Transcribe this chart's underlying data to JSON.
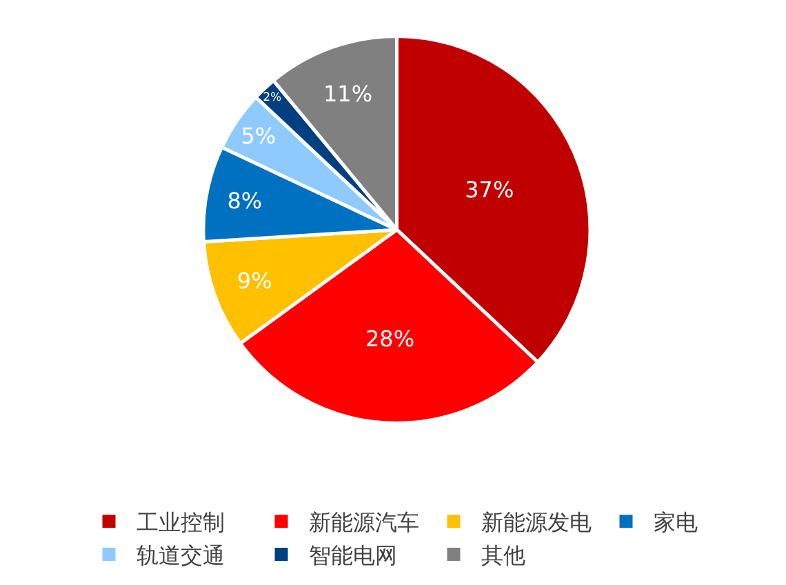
{
  "chart_data": {
    "type": "pie",
    "categories": [
      "工业控制",
      "新能源汽车",
      "新能源发电",
      "家电",
      "轨道交通",
      "智能电网",
      "其他"
    ],
    "values": [
      37,
      28,
      9,
      8,
      5,
      2,
      11
    ],
    "value_labels": [
      "37%",
      "28%",
      "9%",
      "8%",
      "5%",
      "2%",
      "11%"
    ],
    "colors": [
      "#c00000",
      "#ff0000",
      "#ffc000",
      "#0070c0",
      "#8fcaff",
      "#003f80",
      "#808080"
    ],
    "legend": "bottom"
  }
}
